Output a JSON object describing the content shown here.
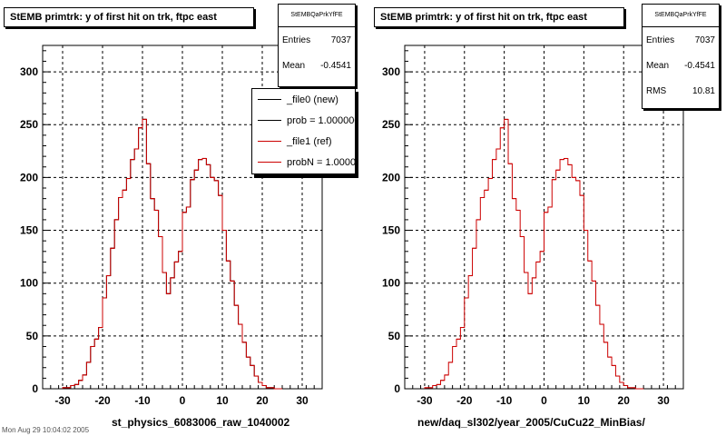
{
  "chart_data": [
    {
      "type": "histogram",
      "title": "StEMB primtrk: y of first hit on trk, ftpc east",
      "xlabel": "st_physics_6083006_raw_1040002",
      "ylabel": "",
      "xlim": [
        -35,
        35
      ],
      "ylim": [
        0,
        325
      ],
      "x_ticks": [
        -30,
        -20,
        -10,
        0,
        10,
        20,
        30
      ],
      "y_ticks": [
        0,
        50,
        100,
        150,
        200,
        250,
        300
      ],
      "grid": true,
      "bin_edges_start": -30,
      "bin_width": 1,
      "series": [
        {
          "name": "_file0 (new)",
          "color": "#000000",
          "values": [
            1,
            1,
            3,
            4,
            8,
            13,
            25,
            40,
            47,
            58,
            86,
            107,
            133,
            160,
            181,
            188,
            199,
            217,
            227,
            247,
            255,
            213,
            180,
            169,
            144,
            110,
            90,
            105,
            120,
            130,
            167,
            172,
            198,
            207,
            217,
            218,
            212,
            200,
            197,
            183,
            150,
            121,
            102,
            79,
            61,
            44,
            30,
            22,
            12,
            6,
            3,
            1,
            1,
            0,
            0
          ]
        },
        {
          "name": "_file1 (ref)",
          "color": "#cc0000",
          "values": [
            1,
            1,
            3,
            4,
            8,
            13,
            25,
            40,
            47,
            58,
            86,
            107,
            133,
            160,
            181,
            188,
            199,
            217,
            227,
            247,
            255,
            213,
            180,
            169,
            144,
            110,
            90,
            105,
            120,
            130,
            167,
            172,
            198,
            207,
            217,
            218,
            212,
            200,
            197,
            183,
            150,
            121,
            102,
            79,
            61,
            44,
            30,
            22,
            12,
            6,
            3,
            1,
            1,
            0,
            0
          ]
        }
      ]
    },
    {
      "type": "histogram",
      "title": "StEMB primtrk: y of first hit on trk, ftpc east",
      "xlabel": "new/daq_sl302/year_2005/CuCu22_MinBias/",
      "ylabel": "",
      "xlim": [
        -35,
        35
      ],
      "ylim": [
        0,
        325
      ],
      "x_ticks": [
        -30,
        -20,
        -10,
        0,
        10,
        20,
        30
      ],
      "y_ticks": [
        0,
        50,
        100,
        150,
        200,
        250,
        300
      ],
      "grid": true,
      "bin_edges_start": -30,
      "bin_width": 1,
      "series": [
        {
          "name": "",
          "color": "#cc0000",
          "values": [
            1,
            1,
            3,
            4,
            8,
            13,
            25,
            40,
            47,
            58,
            86,
            107,
            133,
            160,
            181,
            188,
            199,
            217,
            227,
            247,
            255,
            213,
            180,
            169,
            144,
            110,
            90,
            105,
            120,
            130,
            167,
            172,
            198,
            207,
            217,
            218,
            212,
            200,
            197,
            183,
            150,
            121,
            102,
            79,
            61,
            44,
            30,
            22,
            12,
            6,
            3,
            1,
            1,
            0,
            0
          ]
        }
      ]
    }
  ],
  "panels": [
    {
      "title": "StEMB primtrk: y of first hit on trk, ftpc east",
      "stats_name": "StEMBQaPrkYfFE",
      "stats": [
        {
          "label": "Entries",
          "value": "7037"
        },
        {
          "label": "Mean",
          "value": "-0.4541"
        }
      ],
      "xtitle": "st_physics_6083006_raw_1040002"
    },
    {
      "title": "StEMB primtrk: y of first hit on trk, ftpc east",
      "stats_name": "StEMBQaPrkYfFE",
      "stats": [
        {
          "label": "Entries",
          "value": "7037"
        },
        {
          "label": "Mean",
          "value": "-0.4541"
        },
        {
          "label": "RMS",
          "value": "10.81"
        }
      ],
      "xtitle": "new/daq_sl302/year_2005/CuCu22_MinBias/"
    }
  ],
  "legend": [
    {
      "label": "_file0 (new)",
      "color": "#000000"
    },
    {
      "label": "prob = 1.000000",
      "color": "#000000"
    },
    {
      "label": "_file1 (ref)",
      "color": "#cc0000"
    },
    {
      "label": "probN = 1.000000",
      "color": "#cc0000"
    }
  ],
  "footer": "Mon Aug 29 10:04:02 2005"
}
